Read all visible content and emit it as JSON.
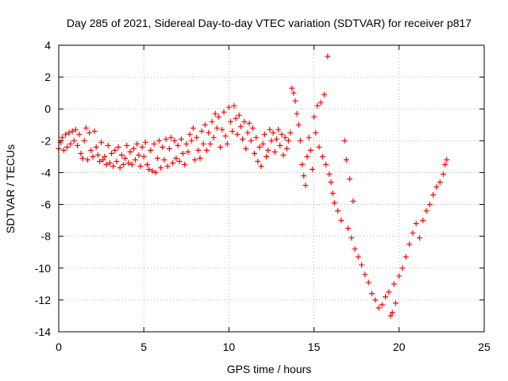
{
  "chart_data": {
    "type": "scatter",
    "title": "Day 285 of 2021, Sidereal Day-to-day VTEC variation (SDTVAR) for receiver p817",
    "xlabel": "GPS time / hours",
    "ylabel": "SDTVAR / TECUs",
    "xlim": [
      0,
      25
    ],
    "ylim": [
      -14,
      4
    ],
    "xticks": [
      0,
      5,
      10,
      15,
      20,
      25
    ],
    "yticks": [
      -14,
      -12,
      -10,
      -8,
      -6,
      -4,
      -2,
      0,
      2,
      4
    ],
    "xtick_labels": [
      "0",
      "5",
      "10",
      "15",
      "20",
      "25"
    ],
    "ytick_labels": [
      "-14",
      "-12",
      "-10",
      "-8",
      "-6",
      "-4",
      "-2",
      "0",
      "2",
      "4"
    ],
    "grid": true,
    "marker": "+",
    "color": "#ff0000",
    "series": [
      {
        "name": "p817",
        "points": [
          [
            0.0,
            -2.5
          ],
          [
            0.1,
            -2.1
          ],
          [
            0.2,
            -1.8
          ],
          [
            0.3,
            -2.6
          ],
          [
            0.4,
            -1.6
          ],
          [
            0.5,
            -2.4
          ],
          [
            0.6,
            -1.5
          ],
          [
            0.7,
            -2.2
          ],
          [
            0.8,
            -1.4
          ],
          [
            0.9,
            -2.0
          ],
          [
            1.0,
            -1.3
          ],
          [
            1.1,
            -2.3
          ],
          [
            1.2,
            -1.6
          ],
          [
            1.3,
            -2.8
          ],
          [
            1.4,
            -3.1
          ],
          [
            1.5,
            -2.0
          ],
          [
            1.6,
            -1.2
          ],
          [
            1.7,
            -3.2
          ],
          [
            1.8,
            -1.5
          ],
          [
            1.9,
            -2.6
          ],
          [
            2.0,
            -3.0
          ],
          [
            2.1,
            -1.4
          ],
          [
            2.2,
            -2.4
          ],
          [
            2.3,
            -2.9
          ],
          [
            2.4,
            -3.3
          ],
          [
            2.5,
            -2.1
          ],
          [
            2.6,
            -3.2
          ],
          [
            2.7,
            -3.0
          ],
          [
            2.8,
            -3.5
          ],
          [
            2.9,
            -2.3
          ],
          [
            3.0,
            -3.4
          ],
          [
            3.1,
            -2.8
          ],
          [
            3.2,
            -3.6
          ],
          [
            3.3,
            -2.6
          ],
          [
            3.4,
            -3.3
          ],
          [
            3.5,
            -2.4
          ],
          [
            3.6,
            -3.7
          ],
          [
            3.7,
            -2.9
          ],
          [
            3.8,
            -3.5
          ],
          [
            3.9,
            -3.1
          ],
          [
            4.0,
            -2.3
          ],
          [
            4.1,
            -3.4
          ],
          [
            4.2,
            -2.7
          ],
          [
            4.3,
            -3.5
          ],
          [
            4.4,
            -2.5
          ],
          [
            4.5,
            -3.2
          ],
          [
            4.6,
            -2.2
          ],
          [
            4.7,
            -2.9
          ],
          [
            4.8,
            -3.6
          ],
          [
            4.9,
            -2.4
          ],
          [
            5.0,
            -3.0
          ],
          [
            5.1,
            -2.1
          ],
          [
            5.2,
            -3.5
          ],
          [
            5.3,
            -3.8
          ],
          [
            5.4,
            -2.6
          ],
          [
            5.5,
            -3.9
          ],
          [
            5.6,
            -2.2
          ],
          [
            5.7,
            -4.0
          ],
          [
            5.8,
            -3.1
          ],
          [
            5.9,
            -2.0
          ],
          [
            6.0,
            -3.7
          ],
          [
            6.1,
            -2.4
          ],
          [
            6.2,
            -3.2
          ],
          [
            6.3,
            -1.9
          ],
          [
            6.4,
            -3.6
          ],
          [
            6.5,
            -2.5
          ],
          [
            6.6,
            -1.8
          ],
          [
            6.7,
            -3.4
          ],
          [
            6.8,
            -2.0
          ],
          [
            6.9,
            -3.1
          ],
          [
            7.0,
            -2.3
          ],
          [
            7.1,
            -3.3
          ],
          [
            7.2,
            -1.9
          ],
          [
            7.3,
            -2.8
          ],
          [
            7.4,
            -3.5
          ],
          [
            7.5,
            -2.2
          ],
          [
            7.6,
            -2.7
          ],
          [
            7.7,
            -1.6
          ],
          [
            7.8,
            -2.0
          ],
          [
            7.9,
            -1.2
          ],
          [
            8.0,
            -3.2
          ],
          [
            8.1,
            -1.8
          ],
          [
            8.2,
            -2.6
          ],
          [
            8.3,
            -3.1
          ],
          [
            8.4,
            -1.4
          ],
          [
            8.5,
            -2.2
          ],
          [
            8.6,
            -1.0
          ],
          [
            8.7,
            -2.6
          ],
          [
            8.8,
            -1.5
          ],
          [
            8.9,
            -2.2
          ],
          [
            9.0,
            -0.8
          ],
          [
            9.1,
            -1.8
          ],
          [
            9.2,
            -0.3
          ],
          [
            9.3,
            -1.2
          ],
          [
            9.4,
            -0.5
          ],
          [
            9.5,
            -2.4
          ],
          [
            9.6,
            -1.3
          ],
          [
            9.7,
            -0.2
          ],
          [
            9.8,
            -1.7
          ],
          [
            9.9,
            -2.2
          ],
          [
            10.0,
            0.1
          ],
          [
            10.1,
            -0.8
          ],
          [
            10.2,
            -1.4
          ],
          [
            10.3,
            0.2
          ],
          [
            10.4,
            -0.6
          ],
          [
            10.5,
            -1.6
          ],
          [
            10.6,
            -0.4
          ],
          [
            10.7,
            -1.1
          ],
          [
            10.8,
            -1.9
          ],
          [
            10.9,
            -0.8
          ],
          [
            11.0,
            -2.5
          ],
          [
            11.1,
            -1.5
          ],
          [
            11.2,
            -0.9
          ],
          [
            11.3,
            -2.0
          ],
          [
            11.4,
            -1.2
          ],
          [
            11.5,
            -2.8
          ],
          [
            11.6,
            -1.8
          ],
          [
            11.7,
            -3.3
          ],
          [
            11.8,
            -2.4
          ],
          [
            11.9,
            -3.6
          ],
          [
            12.0,
            -2.2
          ],
          [
            12.1,
            -1.6
          ],
          [
            12.2,
            -3.0
          ],
          [
            12.3,
            -2.6
          ],
          [
            12.4,
            -1.3
          ],
          [
            12.5,
            -2.0
          ],
          [
            12.6,
            -1.5
          ],
          [
            12.7,
            -2.7
          ],
          [
            12.8,
            -1.9
          ],
          [
            12.9,
            -1.3
          ],
          [
            13.0,
            -2.3
          ],
          [
            13.1,
            -1.6
          ],
          [
            13.2,
            -2.9
          ],
          [
            13.3,
            -1.8
          ],
          [
            13.4,
            -2.5
          ],
          [
            13.5,
            -2.0
          ],
          [
            13.6,
            -1.5
          ],
          [
            13.7,
            1.3
          ],
          [
            13.8,
            1.0
          ],
          [
            13.9,
            0.5
          ],
          [
            14.0,
            -0.3
          ],
          [
            14.1,
            -1.0
          ],
          [
            14.2,
            -2.0
          ],
          [
            14.3,
            -3.5
          ],
          [
            14.4,
            -4.2
          ],
          [
            14.5,
            -4.8
          ],
          [
            14.6,
            -3.0
          ],
          [
            14.7,
            -1.8
          ],
          [
            14.8,
            -2.6
          ],
          [
            14.9,
            -3.8
          ],
          [
            15.0,
            -0.5
          ],
          [
            15.1,
            -1.5
          ],
          [
            15.2,
            0.2
          ],
          [
            15.3,
            -2.4
          ],
          [
            15.4,
            0.4
          ],
          [
            15.5,
            -3.0
          ],
          [
            15.6,
            0.9
          ],
          [
            15.7,
            -3.5
          ],
          [
            15.8,
            3.3
          ],
          [
            15.9,
            -4.1
          ],
          [
            16.0,
            -4.6
          ],
          [
            16.1,
            -5.3
          ],
          [
            16.2,
            -5.9
          ],
          [
            16.4,
            -6.4
          ],
          [
            16.6,
            -7.0
          ],
          [
            16.8,
            -2.0
          ],
          [
            16.9,
            -3.2
          ],
          [
            17.0,
            -7.5
          ],
          [
            17.1,
            -4.4
          ],
          [
            17.2,
            -8.1
          ],
          [
            17.3,
            -5.8
          ],
          [
            17.4,
            -8.8
          ],
          [
            17.6,
            -9.3
          ],
          [
            17.8,
            -9.8
          ],
          [
            18.0,
            -10.4
          ],
          [
            18.2,
            -10.9
          ],
          [
            18.4,
            -11.6
          ],
          [
            18.6,
            -12.0
          ],
          [
            18.8,
            -12.5
          ],
          [
            19.0,
            -12.3
          ],
          [
            19.2,
            -11.8
          ],
          [
            19.4,
            -11.5
          ],
          [
            19.5,
            -13.0
          ],
          [
            19.6,
            -12.8
          ],
          [
            19.7,
            -11.0
          ],
          [
            19.8,
            -12.2
          ],
          [
            20.0,
            -10.5
          ],
          [
            20.2,
            -10.0
          ],
          [
            20.4,
            -9.3
          ],
          [
            20.6,
            -8.5
          ],
          [
            20.8,
            -7.8
          ],
          [
            21.0,
            -7.2
          ],
          [
            21.2,
            -8.1
          ],
          [
            21.4,
            -7.0
          ],
          [
            21.6,
            -6.4
          ],
          [
            21.8,
            -6.0
          ],
          [
            22.0,
            -5.4
          ],
          [
            22.2,
            -4.9
          ],
          [
            22.4,
            -4.6
          ],
          [
            22.6,
            -4.1
          ],
          [
            22.7,
            -3.5
          ],
          [
            22.8,
            -3.2
          ]
        ]
      }
    ]
  }
}
